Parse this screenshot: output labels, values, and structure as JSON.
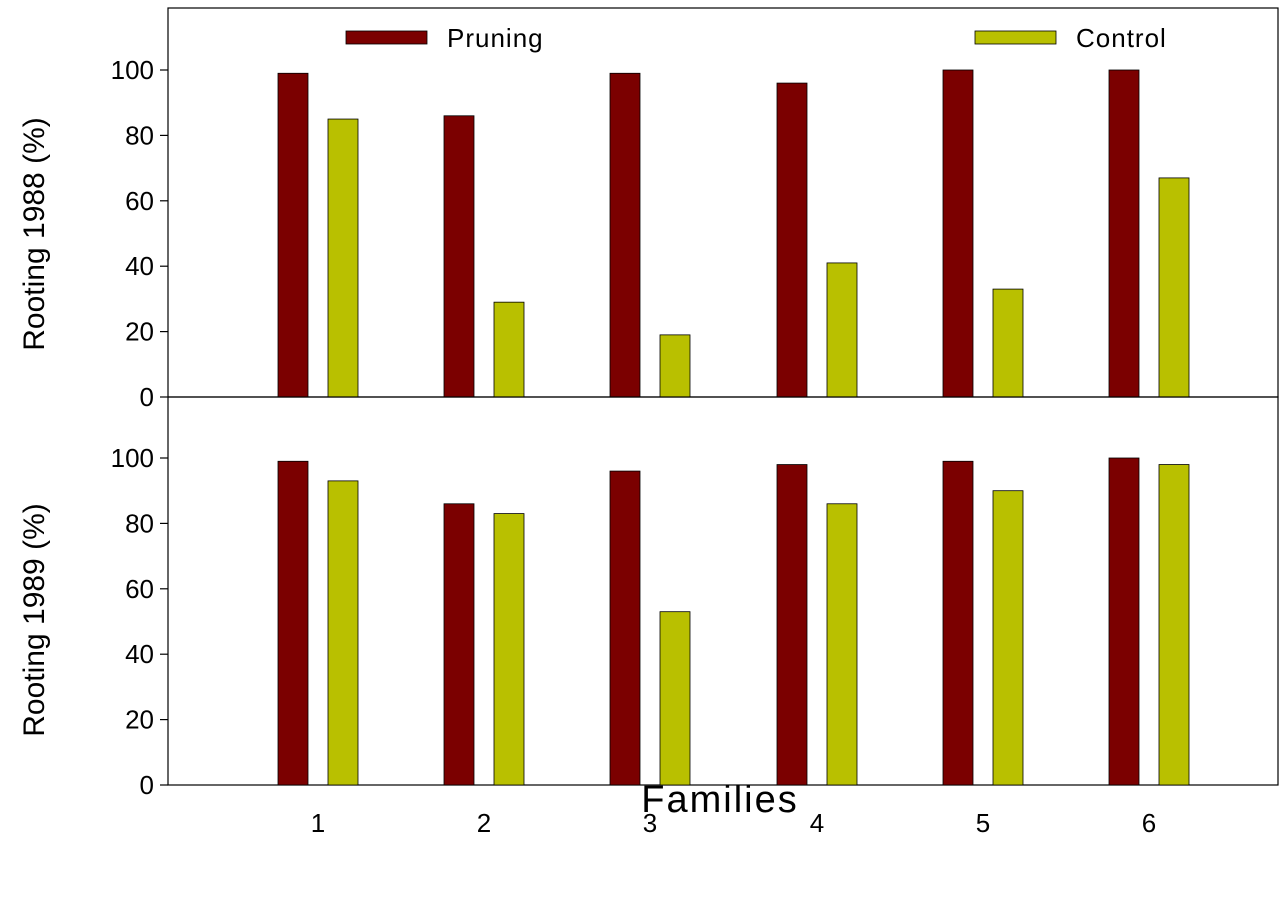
{
  "chart_data": [
    {
      "type": "bar",
      "categories": [
        "1",
        "2",
        "3",
        "4",
        "5",
        "6"
      ],
      "series": [
        {
          "name": "Pruning",
          "values": [
            99,
            86,
            99,
            96,
            100,
            100
          ],
          "color": "#7b0000"
        },
        {
          "name": "Control",
          "values": [
            85,
            29,
            19,
            41,
            33,
            67
          ],
          "color": "#b9c000"
        }
      ],
      "ylabel": "Rooting 1988 (%)",
      "xlabel": "",
      "ylim": [
        0,
        100
      ],
      "yticks": [
        0,
        20,
        40,
        60,
        80,
        100
      ],
      "legend": {
        "placement": "top",
        "entries": [
          "Pruning",
          "Control"
        ]
      },
      "grid": false
    },
    {
      "type": "bar",
      "categories": [
        "1",
        "2",
        "3",
        "4",
        "5",
        "6"
      ],
      "series": [
        {
          "name": "Pruning",
          "values": [
            99,
            86,
            96,
            98,
            99,
            100
          ],
          "color": "#7b0000"
        },
        {
          "name": "Control",
          "values": [
            93,
            83,
            53,
            86,
            90,
            98
          ],
          "color": "#b9c000"
        }
      ],
      "ylabel": "Rooting 1989 (%)",
      "xlabel": "Families",
      "ylim": [
        0,
        100
      ],
      "yticks": [
        0,
        20,
        40,
        60,
        80,
        100
      ],
      "grid": false
    }
  ]
}
